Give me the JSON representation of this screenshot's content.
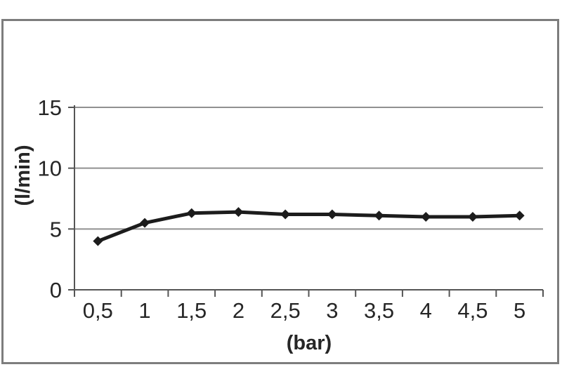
{
  "page": {
    "background": "#ffffff",
    "frame_border_color": "#7d7d7d"
  },
  "chart_data": {
    "type": "line",
    "title": "",
    "categories": [
      "0,5",
      "1",
      "1,5",
      "2",
      "2,5",
      "3",
      "3,5",
      "4",
      "4,5",
      "5"
    ],
    "values": [
      4.0,
      5.5,
      6.3,
      6.4,
      6.2,
      6.2,
      6.1,
      6.0,
      6.0,
      6.1
    ],
    "xlabel": "(bar)",
    "ylabel": "(l/min)",
    "ylim": [
      0,
      15
    ],
    "yticks": [
      0,
      5,
      10,
      15
    ],
    "grid": "horizontal-only",
    "legend": "none",
    "marker": "diamond",
    "colors": {
      "series": "#1c1c1c",
      "grid": "#909090",
      "axis": "#555555",
      "text": "#262626"
    }
  }
}
